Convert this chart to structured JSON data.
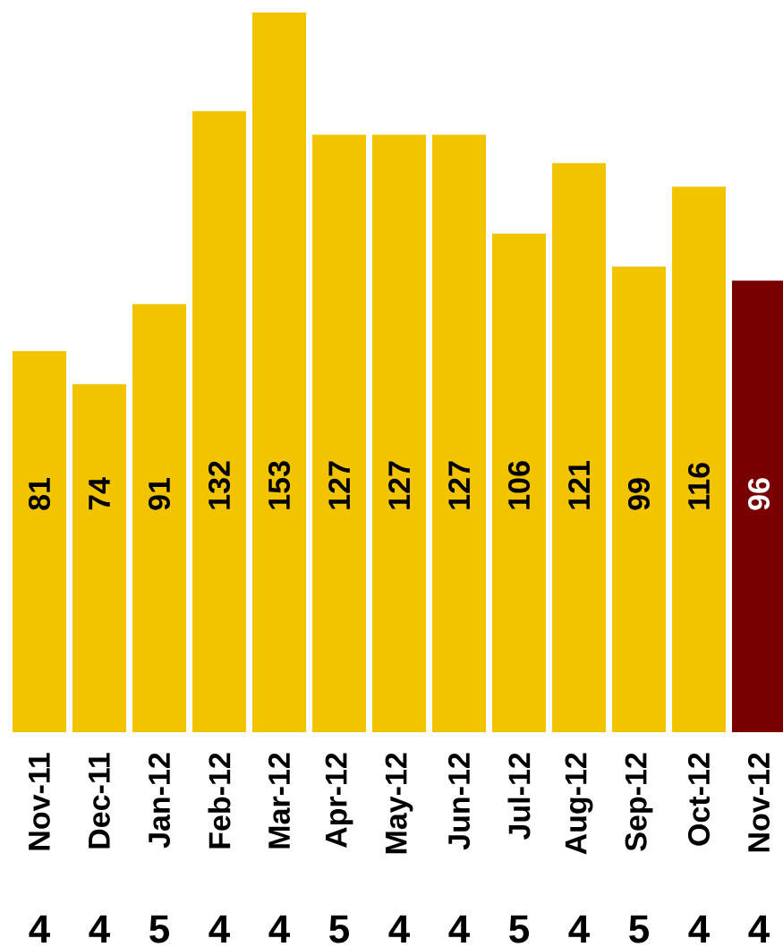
{
  "chart_data": {
    "type": "bar",
    "categories": [
      "Nov-11",
      "Dec-11",
      "Jan-12",
      "Feb-12",
      "Mar-12",
      "Apr-12",
      "May-12",
      "Jun-12",
      "Jul-12",
      "Aug-12",
      "Sep-12",
      "Oct-12",
      "Nov-12"
    ],
    "values": [
      81,
      74,
      91,
      132,
      153,
      127,
      127,
      127,
      106,
      121,
      99,
      116,
      96
    ],
    "colors": [
      "#f2c400",
      "#f2c400",
      "#f2c400",
      "#f2c400",
      "#f2c400",
      "#f2c400",
      "#f2c400",
      "#f2c400",
      "#f2c400",
      "#f2c400",
      "#f2c400",
      "#f2c400",
      "#780000"
    ],
    "data_labels": true,
    "tick_labels": "x",
    "annotations": [
      "4",
      "4",
      "5",
      "4",
      "4",
      "5",
      "4",
      "4",
      "5",
      "4",
      "5",
      "4",
      "4"
    ]
  }
}
